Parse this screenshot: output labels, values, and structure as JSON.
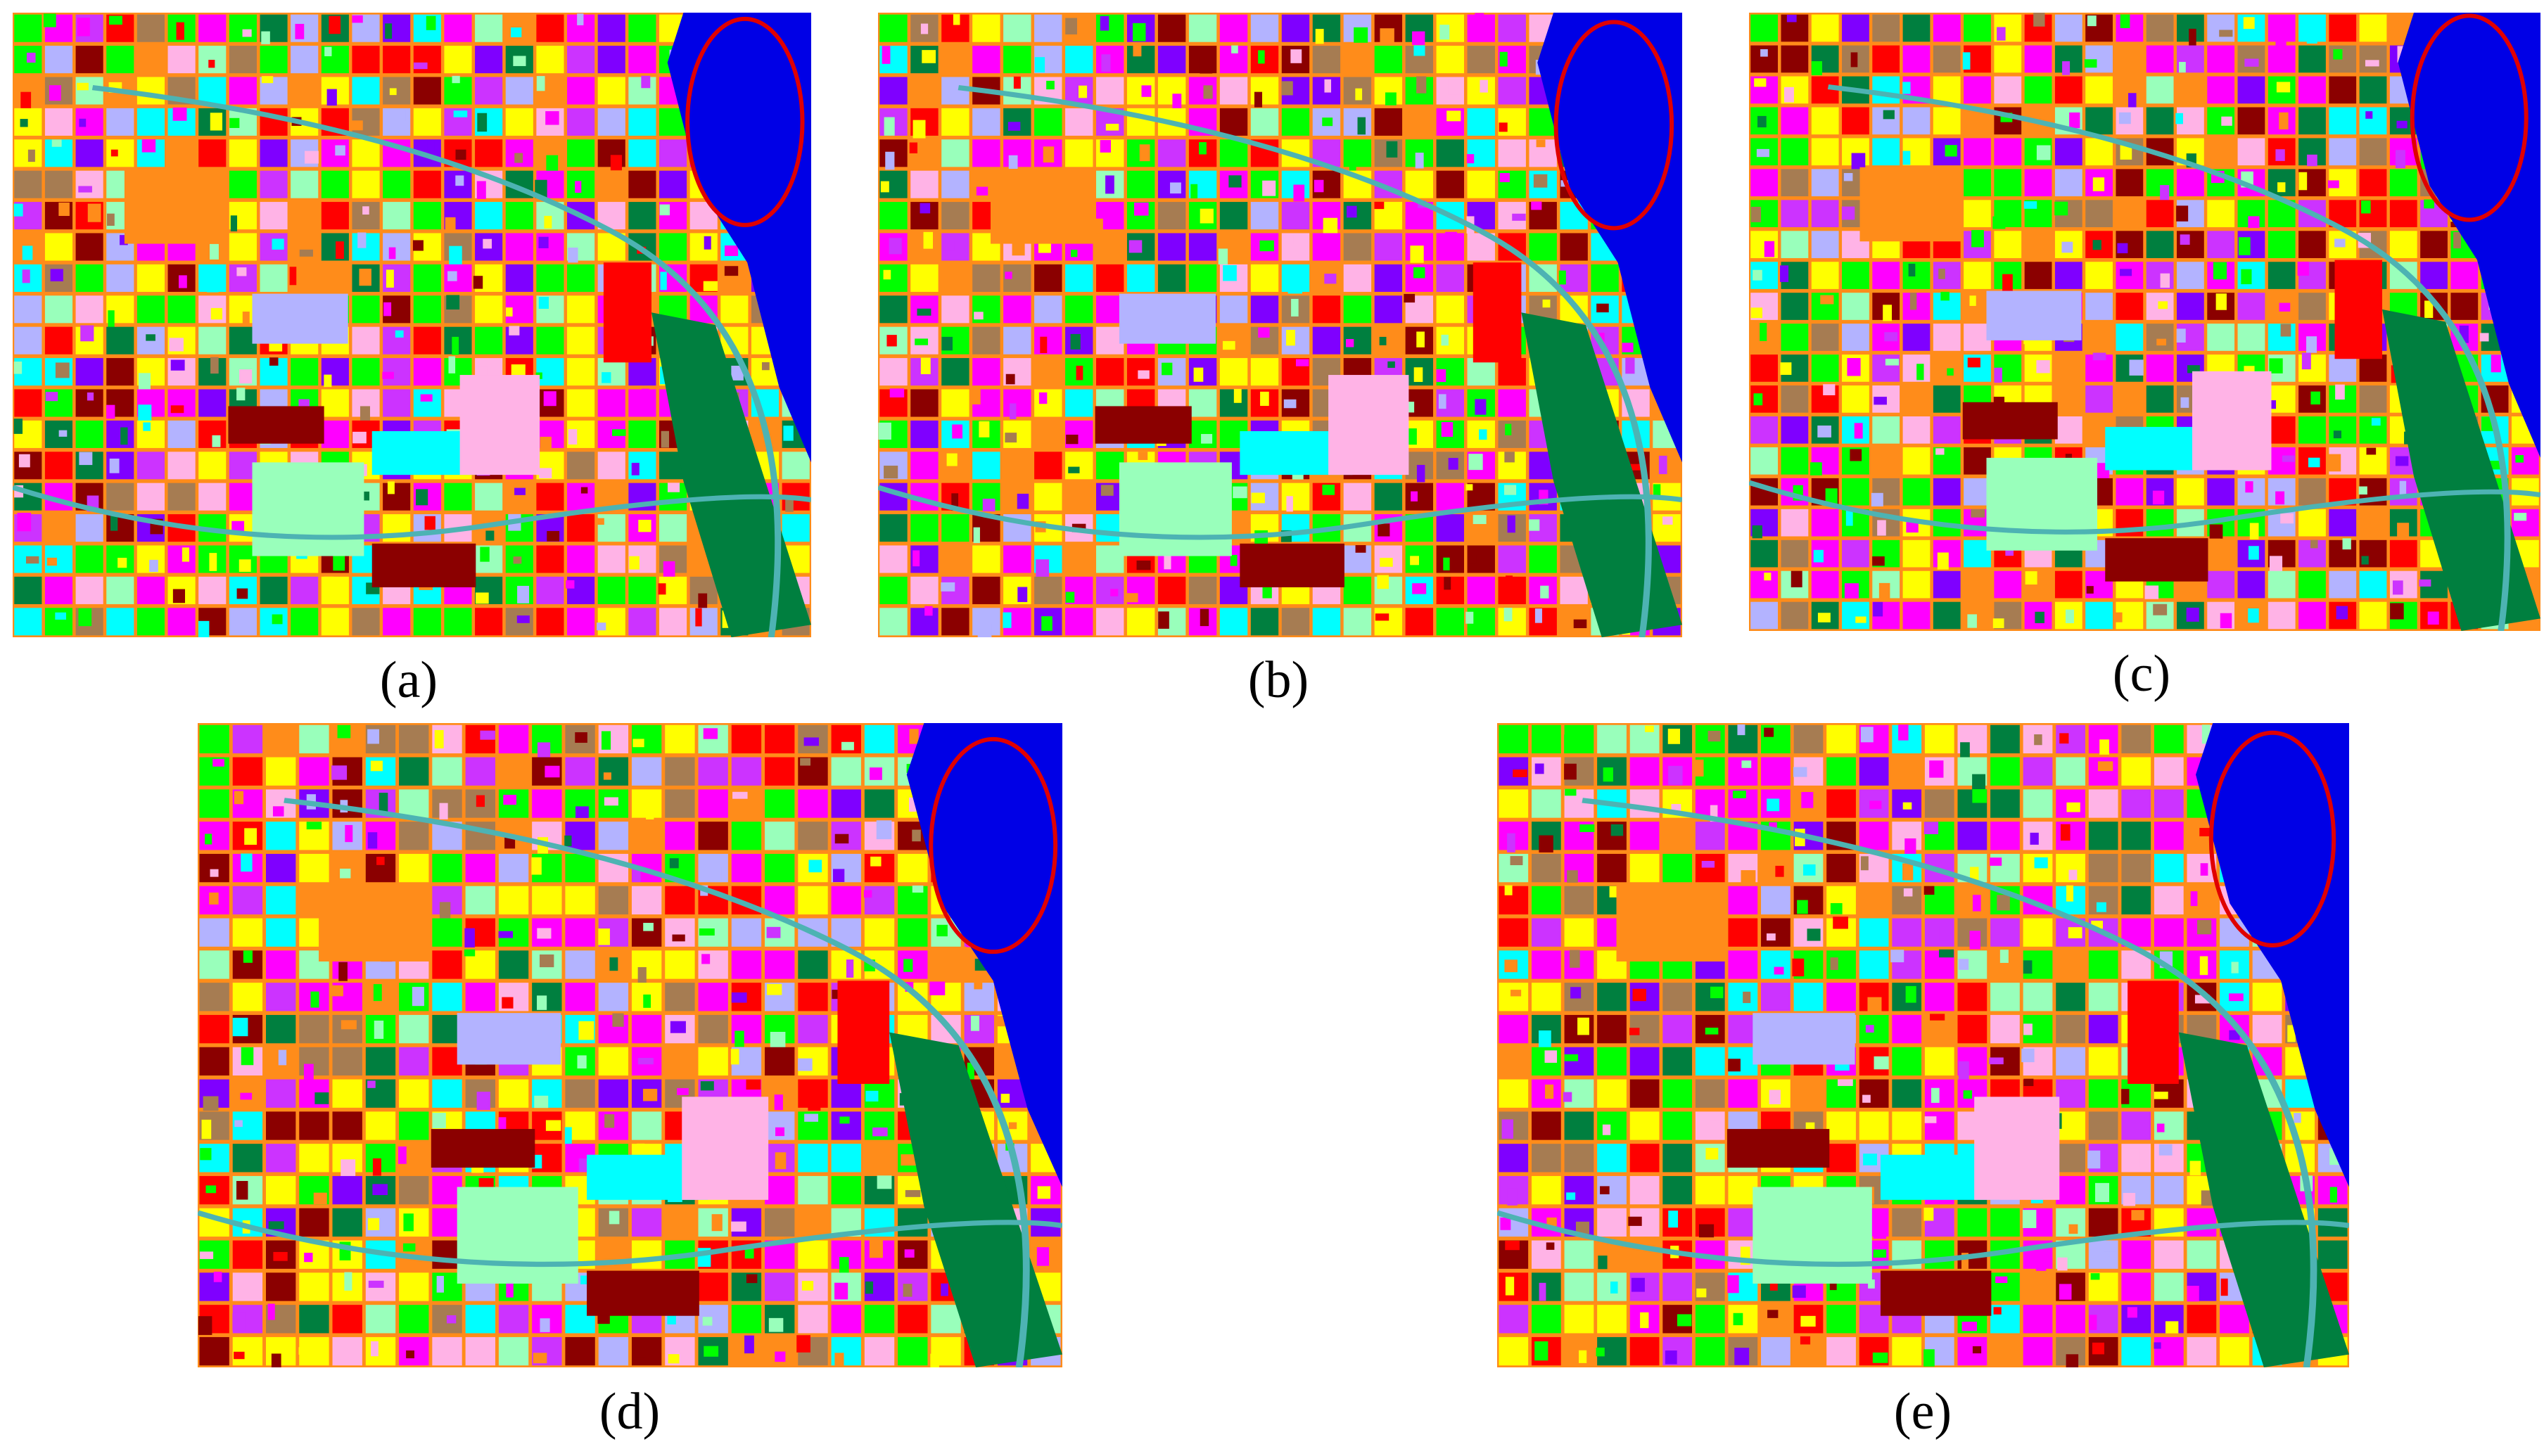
{
  "panels": [
    {
      "label": "(a)"
    },
    {
      "label": "(b)"
    },
    {
      "label": "(c)"
    },
    {
      "label": "(d)"
    },
    {
      "label": "(e)"
    }
  ]
}
